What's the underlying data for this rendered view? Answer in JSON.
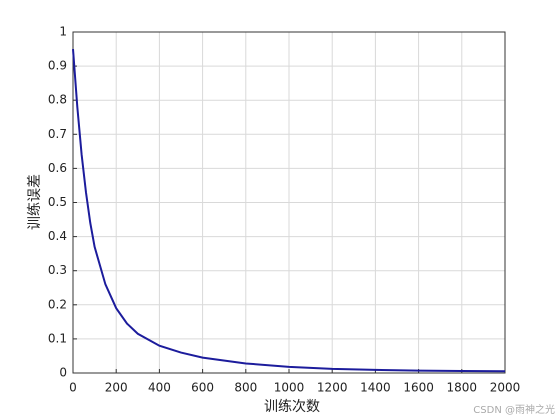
{
  "chart_data": {
    "type": "line",
    "x_label": "训练次数",
    "y_label": "训练误差",
    "watermark": "CSDN @雨神之光",
    "x": [
      0,
      20,
      40,
      60,
      80,
      100,
      150,
      200,
      250,
      300,
      400,
      500,
      600,
      800,
      1000,
      1200,
      1400,
      1600,
      1800,
      2000
    ],
    "series": [
      {
        "name": "训练误差",
        "color": "#1c1c9c",
        "values": [
          0.95,
          0.78,
          0.64,
          0.53,
          0.44,
          0.37,
          0.26,
          0.19,
          0.145,
          0.115,
          0.08,
          0.06,
          0.045,
          0.028,
          0.018,
          0.012,
          0.009,
          0.007,
          0.006,
          0.005
        ]
      }
    ],
    "xlim": [
      0,
      2000
    ],
    "xticks": [
      0,
      200,
      400,
      600,
      800,
      1000,
      1200,
      1400,
      1600,
      1800,
      2000
    ],
    "ylim": [
      0,
      1
    ],
    "yticks": [
      0,
      0.1,
      0.2,
      0.3,
      0.4,
      0.5,
      0.6,
      0.7,
      0.8,
      0.9,
      1
    ],
    "grid": true
  }
}
